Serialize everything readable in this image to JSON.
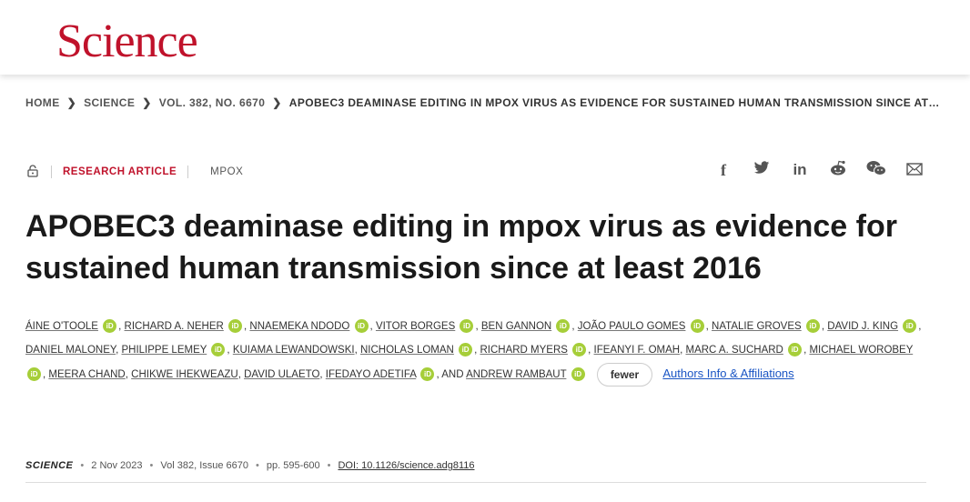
{
  "header": {
    "logo": "Science"
  },
  "breadcrumb": {
    "items": [
      "HOME",
      "SCIENCE",
      "VOL. 382, NO. 6670",
      "APOBEC3 DEAMINASE EDITING IN MPOX VIRUS AS EVIDENCE FOR SUSTAINED HUMAN TRANSMISSION SINCE AT…"
    ]
  },
  "article": {
    "type": "RESEARCH ARTICLE",
    "topic": "MPOX",
    "title": "APOBEC3 deaminase editing in mpox virus as evidence for sustained human transmission since at least 2016",
    "authors": [
      "ÁINE O'TOOLE",
      "RICHARD A. NEHER",
      "NNAEMEKA NDODO",
      "VITOR BORGES",
      "BEN GANNON",
      "JOÃO PAULO GOMES",
      "NATALIE GROVES",
      "DAVID J. KING",
      "DANIEL MALONEY",
      "PHILIPPE LEMEY",
      "KUIAMA LEWANDOWSKI",
      "NICHOLAS LOMAN",
      "RICHARD MYERS",
      "IFEANYI F. OMAH",
      "MARC A. SUCHARD",
      "MICHAEL WOROBEY",
      "MEERA CHAND",
      "CHIKWE IHEKWEAZU",
      "DAVID ULAETO",
      "IFEDAYO ADETIFA",
      "ANDREW RAMBAUT"
    ],
    "and_text": ", AND",
    "orcid_label": "iD",
    "fewer_label": "fewer",
    "authors_info_label": "Authors Info & Affiliations",
    "journal": "SCIENCE",
    "date": "2 Nov 2023",
    "volume": "Vol 382, Issue 6670",
    "pages": "pp. 595-600",
    "doi": "DOI: 10.1126/science.adg8116"
  },
  "share_icons": [
    "facebook-icon",
    "twitter-icon",
    "linkedin-icon",
    "reddit-icon",
    "wechat-icon",
    "email-icon"
  ]
}
